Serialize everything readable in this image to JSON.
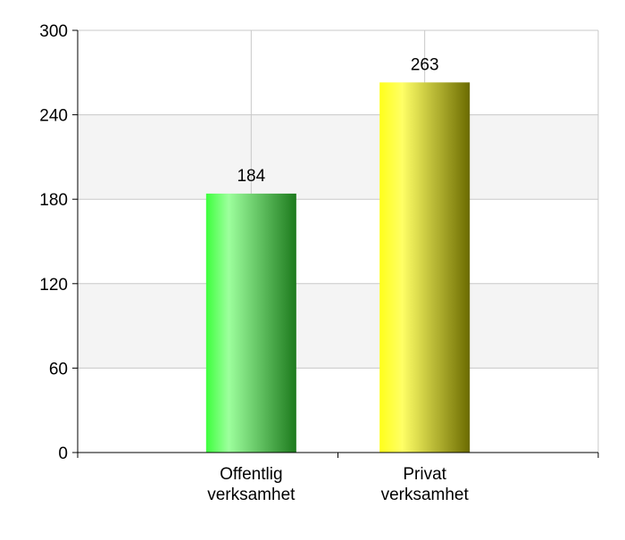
{
  "chart_data": {
    "type": "bar",
    "categories": [
      [
        "Offentlig",
        "verksamhet"
      ],
      [
        "Privat",
        "verksamhet"
      ]
    ],
    "values": [
      184,
      263
    ],
    "data_labels": [
      "184",
      "263"
    ],
    "ylim": [
      0,
      300
    ],
    "yticks": [
      0,
      60,
      120,
      180,
      240,
      300
    ],
    "ytick_labels": [
      "0",
      "60",
      "120",
      "180",
      "240",
      "300"
    ],
    "grid": true,
    "legend": "none",
    "colors": {
      "bar_gradients": [
        {
          "light": "#9dff9d",
          "mid": "#3dff3d",
          "dark": "#1d7a1d"
        },
        {
          "light": "#ffff66",
          "mid": "#ffff1a",
          "dark": "#6b6b00"
        }
      ],
      "band": "#f4f4f4",
      "gridline": "#c8c8c8",
      "axis": "#000000"
    }
  }
}
